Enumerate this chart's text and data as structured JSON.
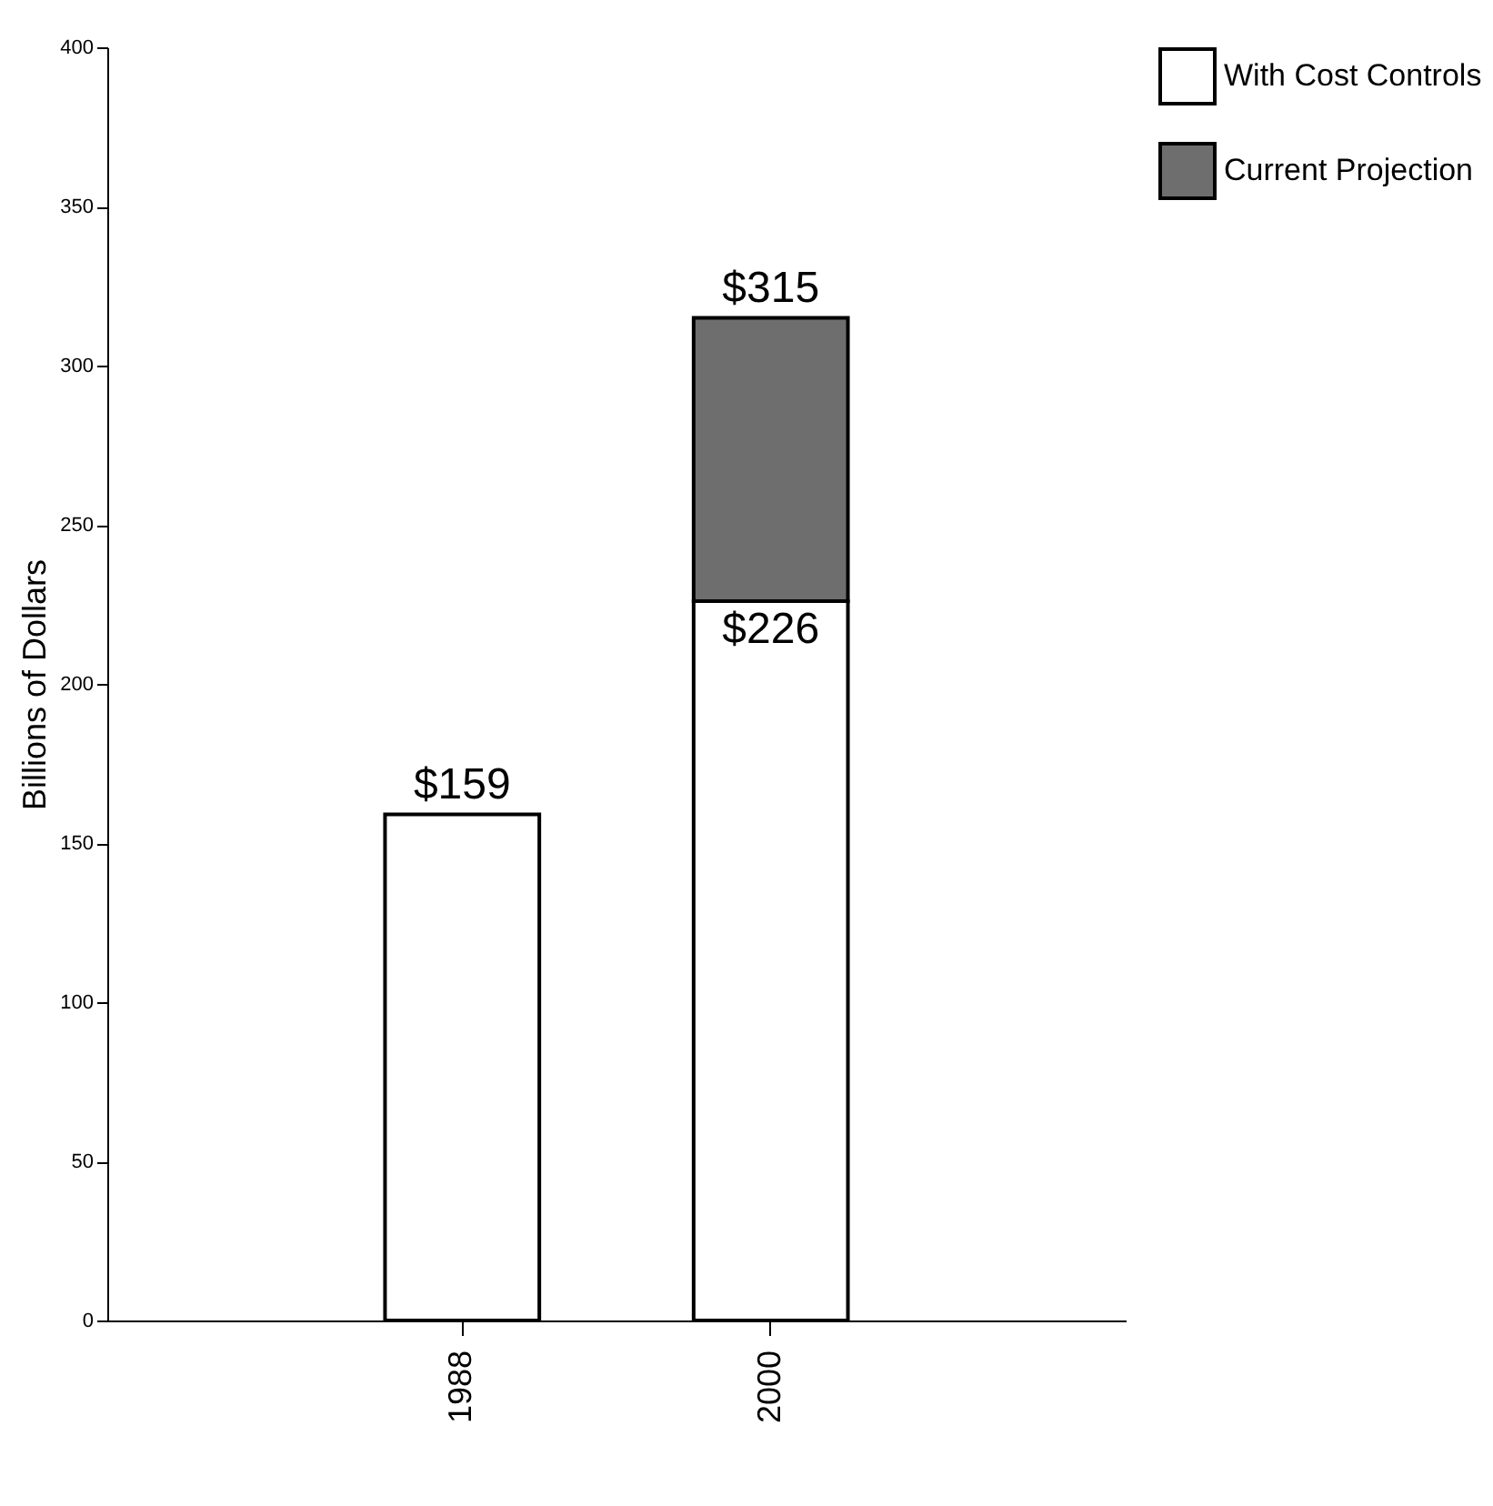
{
  "chart_data": {
    "type": "bar",
    "stacked": true,
    "ylabel": "Billions of Dollars",
    "categories": [
      "1988",
      "2000"
    ],
    "series": [
      {
        "name": "With Cost Controls",
        "color": "#ffffff",
        "values": [
          159,
          226
        ],
        "value_labels": [
          "$159",
          "$226"
        ]
      },
      {
        "name": "Current Projection",
        "color": "#6e6e6e",
        "values": [
          null,
          89
        ],
        "value_labels": [
          null,
          null
        ]
      }
    ],
    "totals": [
      null,
      "$315"
    ],
    "ylim": [
      0,
      400
    ],
    "yticks": [
      0,
      50,
      100,
      150,
      200,
      250,
      300,
      350,
      400
    ],
    "grid": false,
    "legend": "top right"
  }
}
